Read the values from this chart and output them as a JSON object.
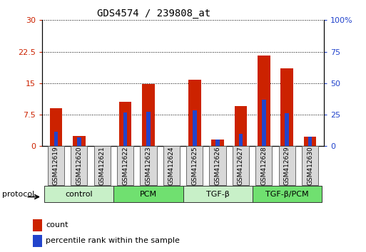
{
  "title": "GDS4574 / 239808_at",
  "samples": [
    "GSM412619",
    "GSM412620",
    "GSM412621",
    "GSM412622",
    "GSM412623",
    "GSM412624",
    "GSM412625",
    "GSM412626",
    "GSM412627",
    "GSM412628",
    "GSM412629",
    "GSM412630"
  ],
  "count_values": [
    9.0,
    2.5,
    0.0,
    10.5,
    14.8,
    0.0,
    15.8,
    1.5,
    9.5,
    21.5,
    18.5,
    2.2
  ],
  "percentile_values": [
    11.5,
    7.0,
    0.0,
    27.0,
    27.5,
    0.0,
    28.5,
    5.5,
    10.0,
    37.0,
    26.0,
    7.5
  ],
  "left_ylim": [
    0,
    30
  ],
  "right_ylim": [
    0,
    100
  ],
  "left_yticks": [
    0,
    7.5,
    15,
    22.5,
    30
  ],
  "right_yticks": [
    0,
    25,
    50,
    75,
    100
  ],
  "groups": [
    {
      "label": "control",
      "start": 0,
      "end": 3,
      "color": "#c8f0c8"
    },
    {
      "label": "PCM",
      "start": 3,
      "end": 6,
      "color": "#70e070"
    },
    {
      "label": "TGF-β",
      "start": 6,
      "end": 9,
      "color": "#c8f0c8"
    },
    {
      "label": "TGF-β/PCM",
      "start": 9,
      "end": 12,
      "color": "#70e070"
    }
  ],
  "bar_color_red": "#cc2200",
  "bar_color_blue": "#2244cc",
  "bar_width": 0.55,
  "blue_bar_width": 0.18,
  "background_color": "#ffffff",
  "plot_bg_color": "#ffffff",
  "tick_label_color_left": "#cc2200",
  "tick_label_color_right": "#2244cc",
  "legend_items": [
    "count",
    "percentile rank within the sample"
  ]
}
